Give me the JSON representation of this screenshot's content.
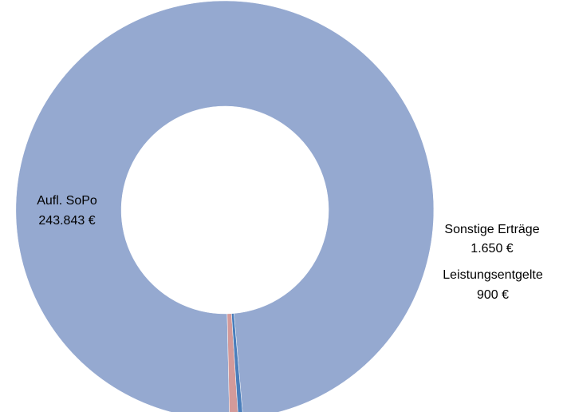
{
  "chart_data": {
    "type": "pie",
    "variant": "donut",
    "slices": [
      {
        "name": "Aufl. SoPo",
        "value": 243843,
        "value_label": "243.843 €",
        "color": "#95A9D0"
      },
      {
        "name": "Sonstige Erträge",
        "value": 1650,
        "value_label": "1.650 €",
        "color": "#D39A9A"
      },
      {
        "name": "Leistungsentgelte",
        "value": 900,
        "value_label": "900 €",
        "color": "#4A7EBB"
      }
    ],
    "start_angle_deg": -85,
    "direction": "counterclockwise",
    "title": "",
    "legend": "none"
  }
}
